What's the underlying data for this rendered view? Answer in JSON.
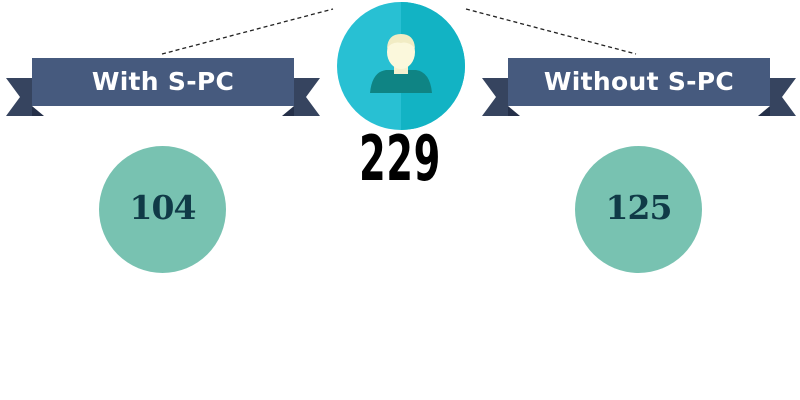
{
  "total": "229",
  "left_group": {
    "label": "With S-PC",
    "count": "104"
  },
  "right_group": {
    "label": "Without S-PC",
    "count": "125"
  },
  "colors": {
    "ribbon_face": "#465a7e",
    "ribbon_tail": "#36445f",
    "person_circle_left": "#28c0d3",
    "person_circle_right": "#12b3c4",
    "count_circle": "#78c2b1",
    "count_text": "#103a47"
  },
  "icons": {
    "center": "person-icon"
  }
}
